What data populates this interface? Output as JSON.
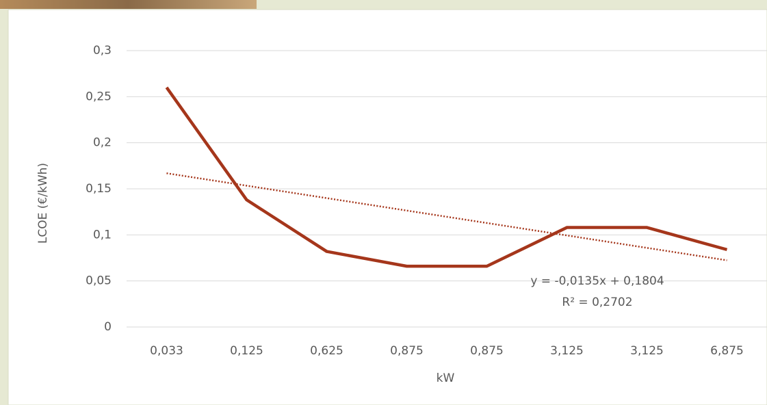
{
  "chart_data": {
    "type": "line",
    "x_label": "kW",
    "y_label": "LCOE (€/kWh)",
    "categories": [
      "0,033",
      "0,125",
      "0,625",
      "0,875",
      "0,875",
      "3,125",
      "3,125",
      "6,875"
    ],
    "series": [
      {
        "color": "#a5361b",
        "values": [
          0.26,
          0.138,
          0.082,
          0.066,
          0.066,
          0.108,
          0.108,
          0.084
        ]
      }
    ],
    "ylim": [
      0,
      0.3
    ],
    "yticks": [
      0,
      {
        "value": 0.05,
        "label": "0,05"
      },
      {
        "value": 0.1,
        "label": "0,1"
      },
      {
        "value": 0.15,
        "label": "0,15"
      },
      {
        "value": 0.2,
        "label": "0,2"
      },
      {
        "value": 0.25,
        "label": "0,25"
      },
      {
        "value": 0.3,
        "label": "0,3"
      }
    ],
    "grid": true,
    "trendline": {
      "slope": -0.0135,
      "intercept": 0.1804,
      "color": "#a5361b",
      "equation": "y = -0,0135x + 0,1804",
      "r_squared": "R² = 0,2702"
    }
  }
}
